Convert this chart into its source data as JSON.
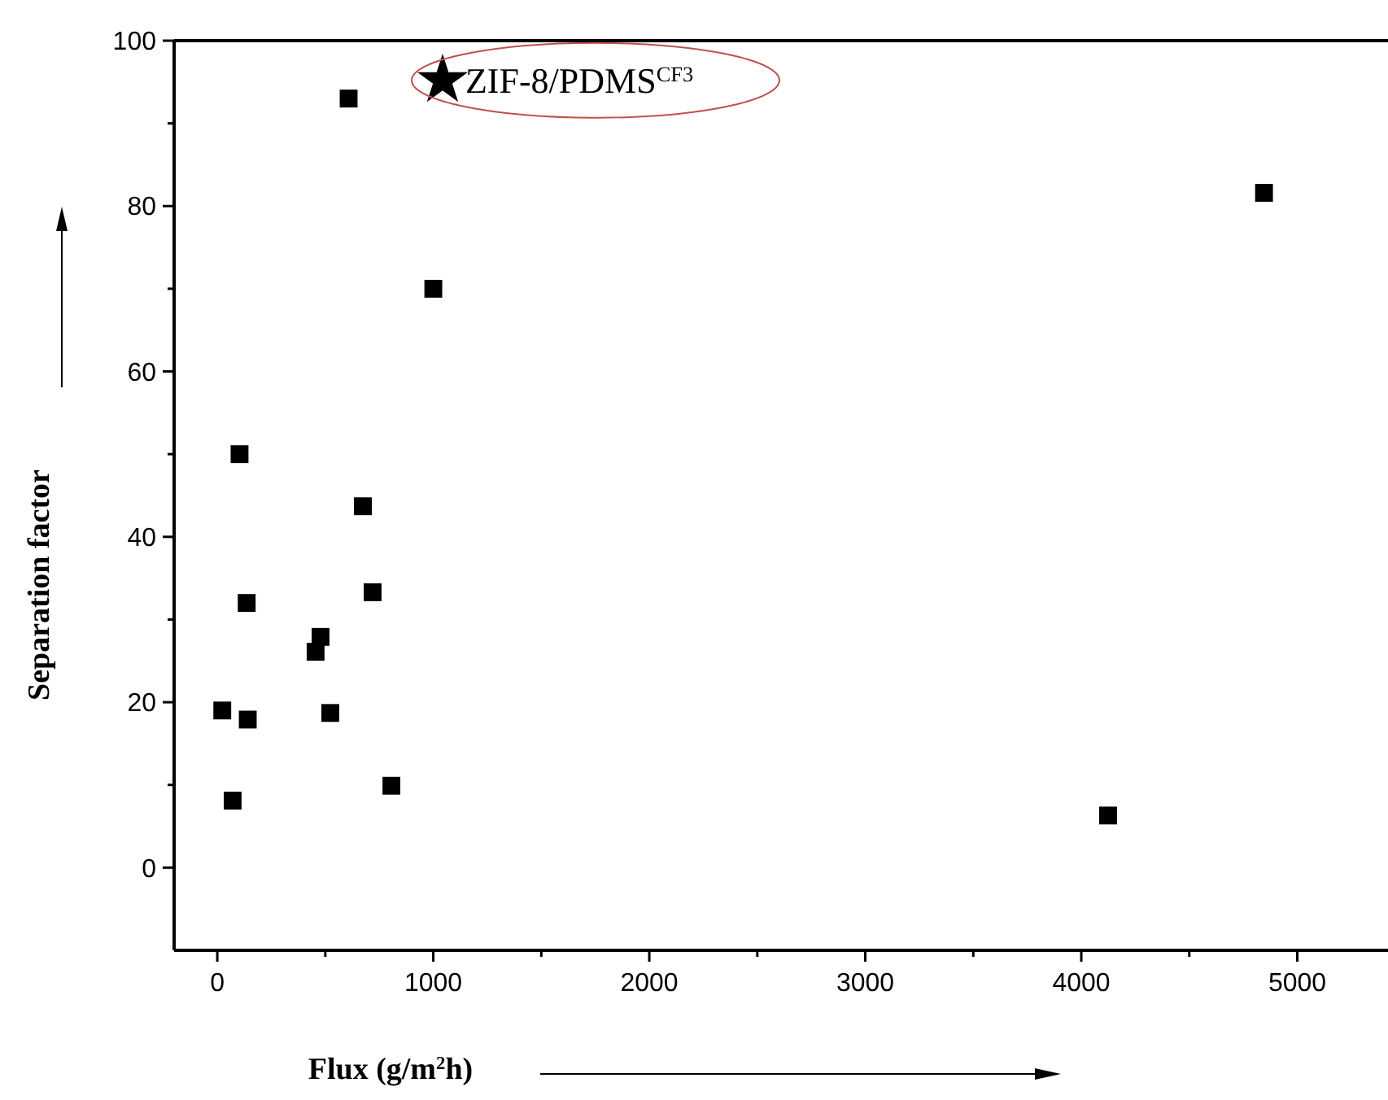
{
  "chart_data": {
    "type": "scatter",
    "xlabel": "Flux (g/m$^{2}$h)",
    "ylabel": "Separation factor",
    "xlim": [
      -200,
      5420
    ],
    "ylim": [
      -10,
      100
    ],
    "xticks": [
      0,
      {
        "value": 500,
        "label": null
      },
      1000,
      {
        "value": 1500,
        "label": null
      },
      2000,
      {
        "value": 2500,
        "label": null
      },
      3000,
      {
        "value": 3500,
        "label": null
      },
      4000,
      {
        "value": 4500,
        "label": null
      },
      5000
    ],
    "yticks": [
      0,
      {
        "value": 10,
        "label": null
      },
      20,
      {
        "value": 30,
        "label": null
      },
      40,
      {
        "value": 50,
        "label": null
      },
      60,
      {
        "value": 70,
        "label": null
      },
      80,
      {
        "value": 90,
        "label": null
      },
      100
    ],
    "grid": false,
    "series": [
      {
        "color": "#000000",
        "marker": "square",
        "x": [
          608,
          1000,
          103,
          674,
          136,
          719,
          478,
          455,
          23,
          141,
          523,
          71,
          806,
          4846,
          4124
        ],
        "values": [
          93,
          70,
          50,
          43.7,
          32,
          33.3,
          27.9,
          26.1,
          19,
          17.9,
          18.7,
          8.1,
          9.9,
          81.6,
          6.3
        ]
      },
      {
        "name": "ZIF-8/PDMS$^{CF3}$",
        "color": "#000000",
        "marker": "star",
        "x": [
          1043
        ],
        "values": [
          95.2
        ]
      }
    ]
  }
}
